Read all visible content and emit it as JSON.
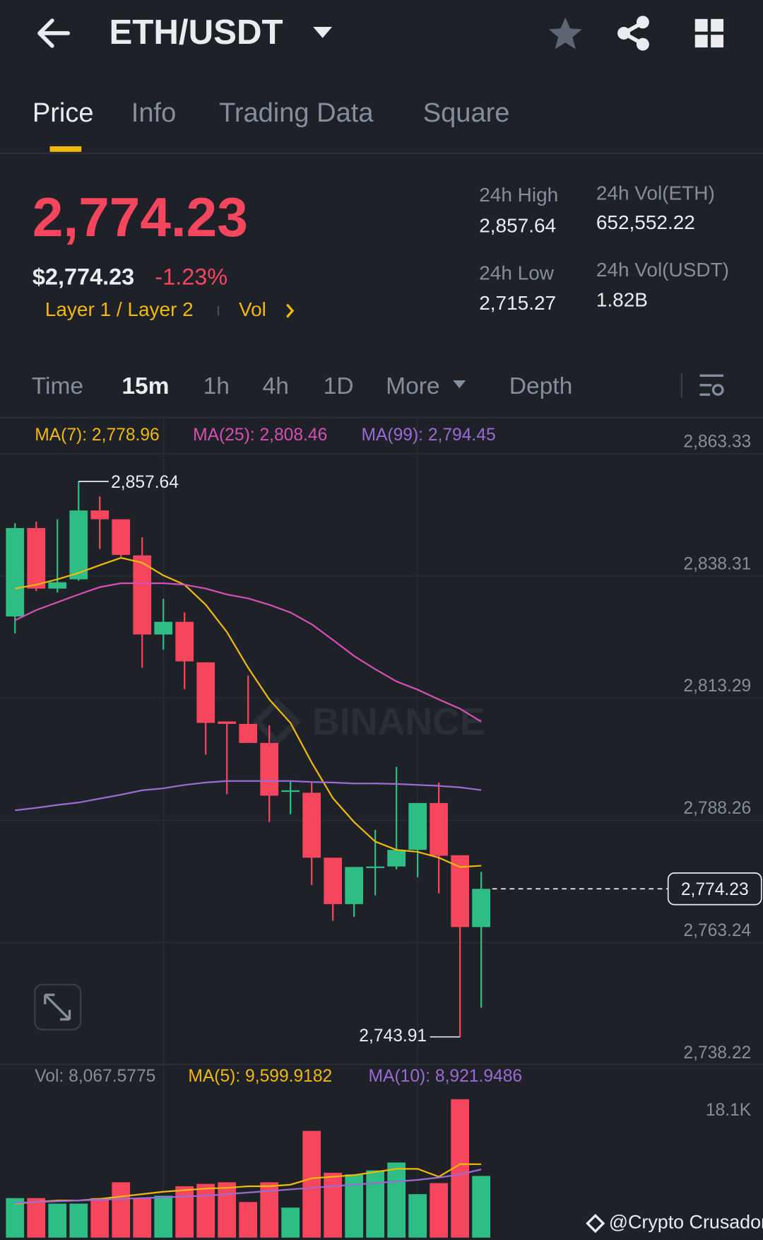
{
  "header": {
    "pair": "ETH/USDT"
  },
  "tabs": [
    "Price",
    "Info",
    "Trading Data",
    "Square"
  ],
  "ticker": {
    "price": "2,774.23",
    "usd_price": "$2,774.23",
    "change": "-1.23%",
    "tags": [
      "Layer 1 / Layer 2",
      "Vol"
    ]
  },
  "stats": [
    {
      "label": "24h High",
      "value": "2,857.64"
    },
    {
      "label": "24h Vol(ETH)",
      "value": "652,552.22"
    },
    {
      "label": "24h Low",
      "value": "2,715.27"
    },
    {
      "label": "24h Vol(USDT)",
      "value": "1.82B"
    }
  ],
  "intervals": [
    "Time",
    "15m",
    "1h",
    "4h",
    "1D",
    "More",
    "Depth"
  ],
  "chart": {
    "type": "candlestick",
    "watermark": "BINANCE",
    "ylim": [
      2738.22,
      2870.4
    ],
    "yticks": [
      {
        "value": 2863.33,
        "label": "2,863.33"
      },
      {
        "value": 2838.31,
        "label": "2,838.31"
      },
      {
        "value": 2813.29,
        "label": "2,813.29"
      },
      {
        "value": 2788.26,
        "label": "2,788.26"
      },
      {
        "value": 2763.24,
        "label": "2,763.24"
      },
      {
        "value": 2738.22,
        "label": "2,738.22"
      }
    ],
    "up_color": "#2ebd85",
    "down_color": "#f6465d",
    "open": [
      2830.0,
      2848.1,
      2835.7,
      2837.6,
      2851.7,
      2849.9,
      2842.5,
      2826.3,
      2828.9,
      2820.6,
      2808.5,
      2808.0,
      2804.1,
      2794.1,
      2793.9,
      2780.6,
      2771.1,
      2778.5,
      2778.8,
      2782.2,
      2791.8,
      2781.1,
      2766.4
    ],
    "high": [
      2849.1,
      2849.4,
      2849.9,
      2857.64,
      2854.6,
      2849.9,
      2846.2,
      2833.6,
      2830.8,
      2820.6,
      2808.5,
      2817.9,
      2807.7,
      2796.3,
      2796.0,
      2780.6,
      2778.7,
      2786.3,
      2799.2,
      2791.8,
      2796.0,
      2781.1,
      2777.7
    ],
    "low": [
      2826.5,
      2835.2,
      2834.9,
      2837.3,
      2843.8,
      2842.2,
      2819.5,
      2823.2,
      2815.1,
      2801.7,
      2793.6,
      2804.1,
      2787.9,
      2789.5,
      2775.0,
      2767.7,
      2768.5,
      2772.9,
      2778.2,
      2776.6,
      2773.3,
      2743.91,
      2749.9
    ],
    "close": [
      2848.1,
      2835.7,
      2837.0,
      2851.7,
      2849.9,
      2842.6,
      2826.3,
      2828.9,
      2820.8,
      2808.2,
      2808.0,
      2804.1,
      2793.3,
      2794.4,
      2780.6,
      2771.1,
      2778.7,
      2778.8,
      2782.2,
      2791.8,
      2781.0,
      2766.4,
      2774.23
    ],
    "high_label": "2,857.64",
    "low_label": "2,743.91",
    "current_label": "2,774.23",
    "series": [
      {
        "label": "MA(7): 2,778.96",
        "color": "#f0b90b",
        "values": [
          2835.7,
          2836.5,
          2837.6,
          2838.9,
          2840.5,
          2842.0,
          2841.0,
          2838.4,
          2836.5,
          2832.4,
          2826.8,
          2819.5,
          2813.0,
          2808.2,
          2800.1,
          2792.8,
          2787.9,
          2783.9,
          2782.2,
          2781.8,
          2780.6,
          2778.7,
          2778.96
        ]
      },
      {
        "label": "MA(25): 2,808.46",
        "color": "#d64fb5",
        "values": [
          2829.2,
          2831.3,
          2832.9,
          2834.5,
          2836.0,
          2836.8,
          2836.8,
          2836.8,
          2836.5,
          2835.7,
          2834.5,
          2833.7,
          2832.4,
          2830.8,
          2828.4,
          2825.2,
          2821.9,
          2819.2,
          2816.7,
          2815.0,
          2813.0,
          2811.1,
          2808.46
        ]
      },
      {
        "label": "MA(99): 2,794.45",
        "color": "#9c6ad6",
        "values": [
          2790.3,
          2790.8,
          2791.4,
          2791.9,
          2792.7,
          2793.5,
          2794.4,
          2794.8,
          2795.5,
          2796.0,
          2796.3,
          2796.3,
          2796.3,
          2796.3,
          2796.1,
          2796.0,
          2795.8,
          2795.8,
          2795.7,
          2795.5,
          2795.3,
          2795.0,
          2794.45
        ]
      }
    ]
  },
  "volume": {
    "type": "bar",
    "label": "Vol: 8,067.5775",
    "ylim": [
      0,
      18100
    ],
    "yticks": [
      {
        "value": 18100,
        "label": "18.1K"
      }
    ],
    "values": [
      5170,
      5170,
      4446,
      4446,
      5170,
      7238,
      5170,
      5480,
      6721,
      7031,
      7238,
      4653,
      7238,
      3929,
      13959,
      8479,
      8272,
      8789,
      9823,
      5687,
      7135,
      18100,
      8067.5775
    ],
    "series": [
      {
        "label": "MA(5): 9,599.9182",
        "color": "#f0b90b",
        "values": [
          4446,
          4653,
          4860,
          4860,
          5067,
          5377,
          5687,
          5997,
          6204,
          6411,
          6514,
          6721,
          6721,
          6928,
          7755,
          7962,
          8169,
          8582,
          8996,
          8996,
          7962,
          9616,
          9599.9182
        ]
      },
      {
        "label": "MA(10): 8,921.9486",
        "color": "#9c6ad6",
        "values": [
          4550,
          4653,
          4756,
          4860,
          4963,
          5067,
          5170,
          5273,
          5377,
          5480,
          5687,
          5894,
          6101,
          6307,
          6514,
          6721,
          6928,
          7135,
          7341,
          7548,
          7858,
          8272,
          8921.9486
        ]
      }
    ]
  },
  "footer": {
    "credit": "@Crypto Crusador"
  }
}
